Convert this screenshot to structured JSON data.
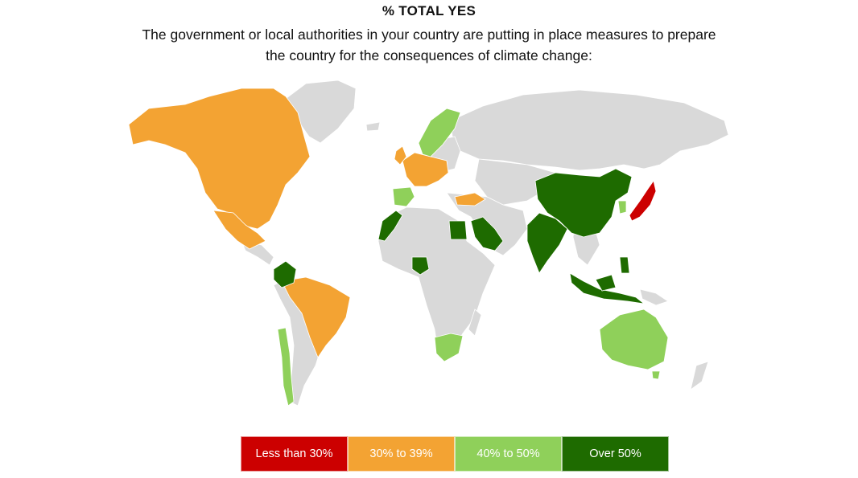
{
  "title": "% TOTAL YES",
  "subtitle": "The government or local authorities in your country are putting in place measures to prepare the country for the consequences of climate change:",
  "colors": {
    "less_than_30": "#cc0000",
    "from_30_to_39": "#f3a333",
    "from_40_to_50": "#8fd05a",
    "over_50": "#1e6b00",
    "no_data": "#d9d9d9"
  },
  "legend": [
    {
      "label": "Less than 30%",
      "color": "#cc0000"
    },
    {
      "label": "30% to 39%",
      "color": "#f3a333"
    },
    {
      "label": "40% to 50%",
      "color": "#8fd05a"
    },
    {
      "label": "Over 50%",
      "color": "#1e6b00"
    }
  ]
}
